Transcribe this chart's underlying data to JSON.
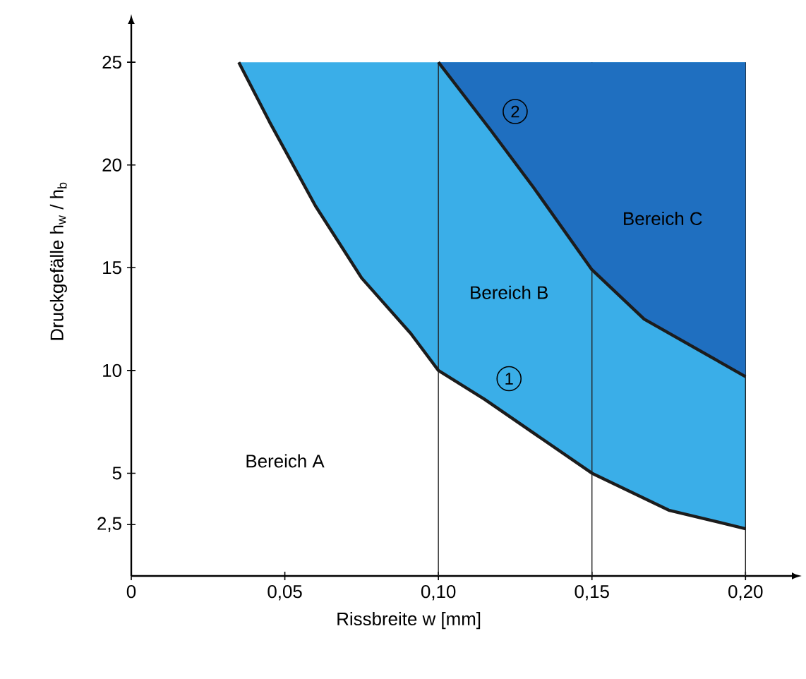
{
  "chart_data": {
    "type": "line",
    "xlabel": "Rissbreite w [mm]",
    "ylabel": "Druckgefälle h$_{w}$ / h$_{b}$",
    "xlim": [
      0,
      0.2151
    ],
    "ylim": [
      0,
      26.86
    ],
    "xticks": [
      {
        "value": 0,
        "label": "0"
      },
      {
        "value": 0.05,
        "label": "0,05"
      },
      {
        "value": 0.1,
        "label": "0,10"
      },
      {
        "value": 0.15,
        "label": "0,15"
      },
      {
        "value": 0.2,
        "label": "0,20"
      }
    ],
    "yticks": [
      {
        "value": 2.5,
        "label": "2,5"
      },
      5,
      10,
      15,
      20,
      25
    ],
    "series": [
      {
        "color": "#1c1c1c",
        "x": [
          0.035,
          0.045,
          0.06,
          0.075,
          0.091,
          0.1,
          0.115,
          0.15,
          0.175,
          0.2
        ],
        "values": [
          25,
          22.1,
          18,
          14.5,
          11.8,
          10,
          8.6,
          5,
          3.2,
          2.3
        ],
        "lower": [
          25,
          22.1,
          18,
          14.5,
          11.8,
          10,
          8.6,
          5,
          3.2,
          2.3
        ],
        "upper": [
          25,
          25,
          25,
          25,
          25,
          25,
          25,
          25,
          25,
          25
        ]
      },
      {
        "color": "#1c1c1c",
        "x": [
          0.1,
          0.117,
          0.131,
          0.15,
          0.167,
          0.2
        ],
        "values": [
          25,
          21.7,
          18.9,
          14.9,
          12.5,
          9.7
        ],
        "lower": [
          25,
          21.7,
          18.9,
          14.9,
          12.5,
          9.7
        ],
        "upper": [
          25,
          25,
          25,
          25,
          25,
          25
        ]
      }
    ],
    "ref_lines": [
      {
        "axis": "x",
        "value": 0.1,
        "color": "#222222"
      },
      {
        "axis": "x",
        "value": 0.15,
        "color": "#222222"
      },
      {
        "axis": "x",
        "value": 0.2,
        "color": "#222222"
      }
    ],
    "annotations": [
      {
        "text": "1",
        "x": 0.123,
        "y": 9.6
      },
      {
        "text": "2",
        "x": 0.125,
        "y": 22.6
      },
      "Bereich A",
      "Bereich B",
      "Bereich C"
    ]
  }
}
